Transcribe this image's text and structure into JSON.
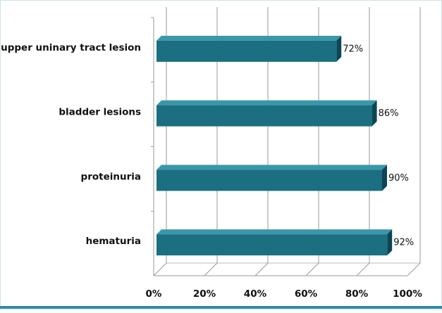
{
  "chart_data": {
    "type": "bar",
    "orientation": "horizontal",
    "categories": [
      "upper uninary tract lesion",
      "bladder lesions",
      "proteinuria",
      "hematuria"
    ],
    "values": [
      72,
      86,
      90,
      92
    ],
    "value_labels": [
      "72%",
      "86%",
      "90%",
      "92%"
    ],
    "color": "#1b6f81",
    "xlim": [
      0,
      100
    ],
    "xticks": [
      {
        "value": 0,
        "label": "0%"
      },
      {
        "value": 20,
        "label": "20%"
      },
      {
        "value": 40,
        "label": "40%"
      },
      {
        "value": 60,
        "label": "60%"
      },
      {
        "value": 80,
        "label": "80%"
      },
      {
        "value": 100,
        "label": "100%"
      }
    ],
    "grid": true
  }
}
